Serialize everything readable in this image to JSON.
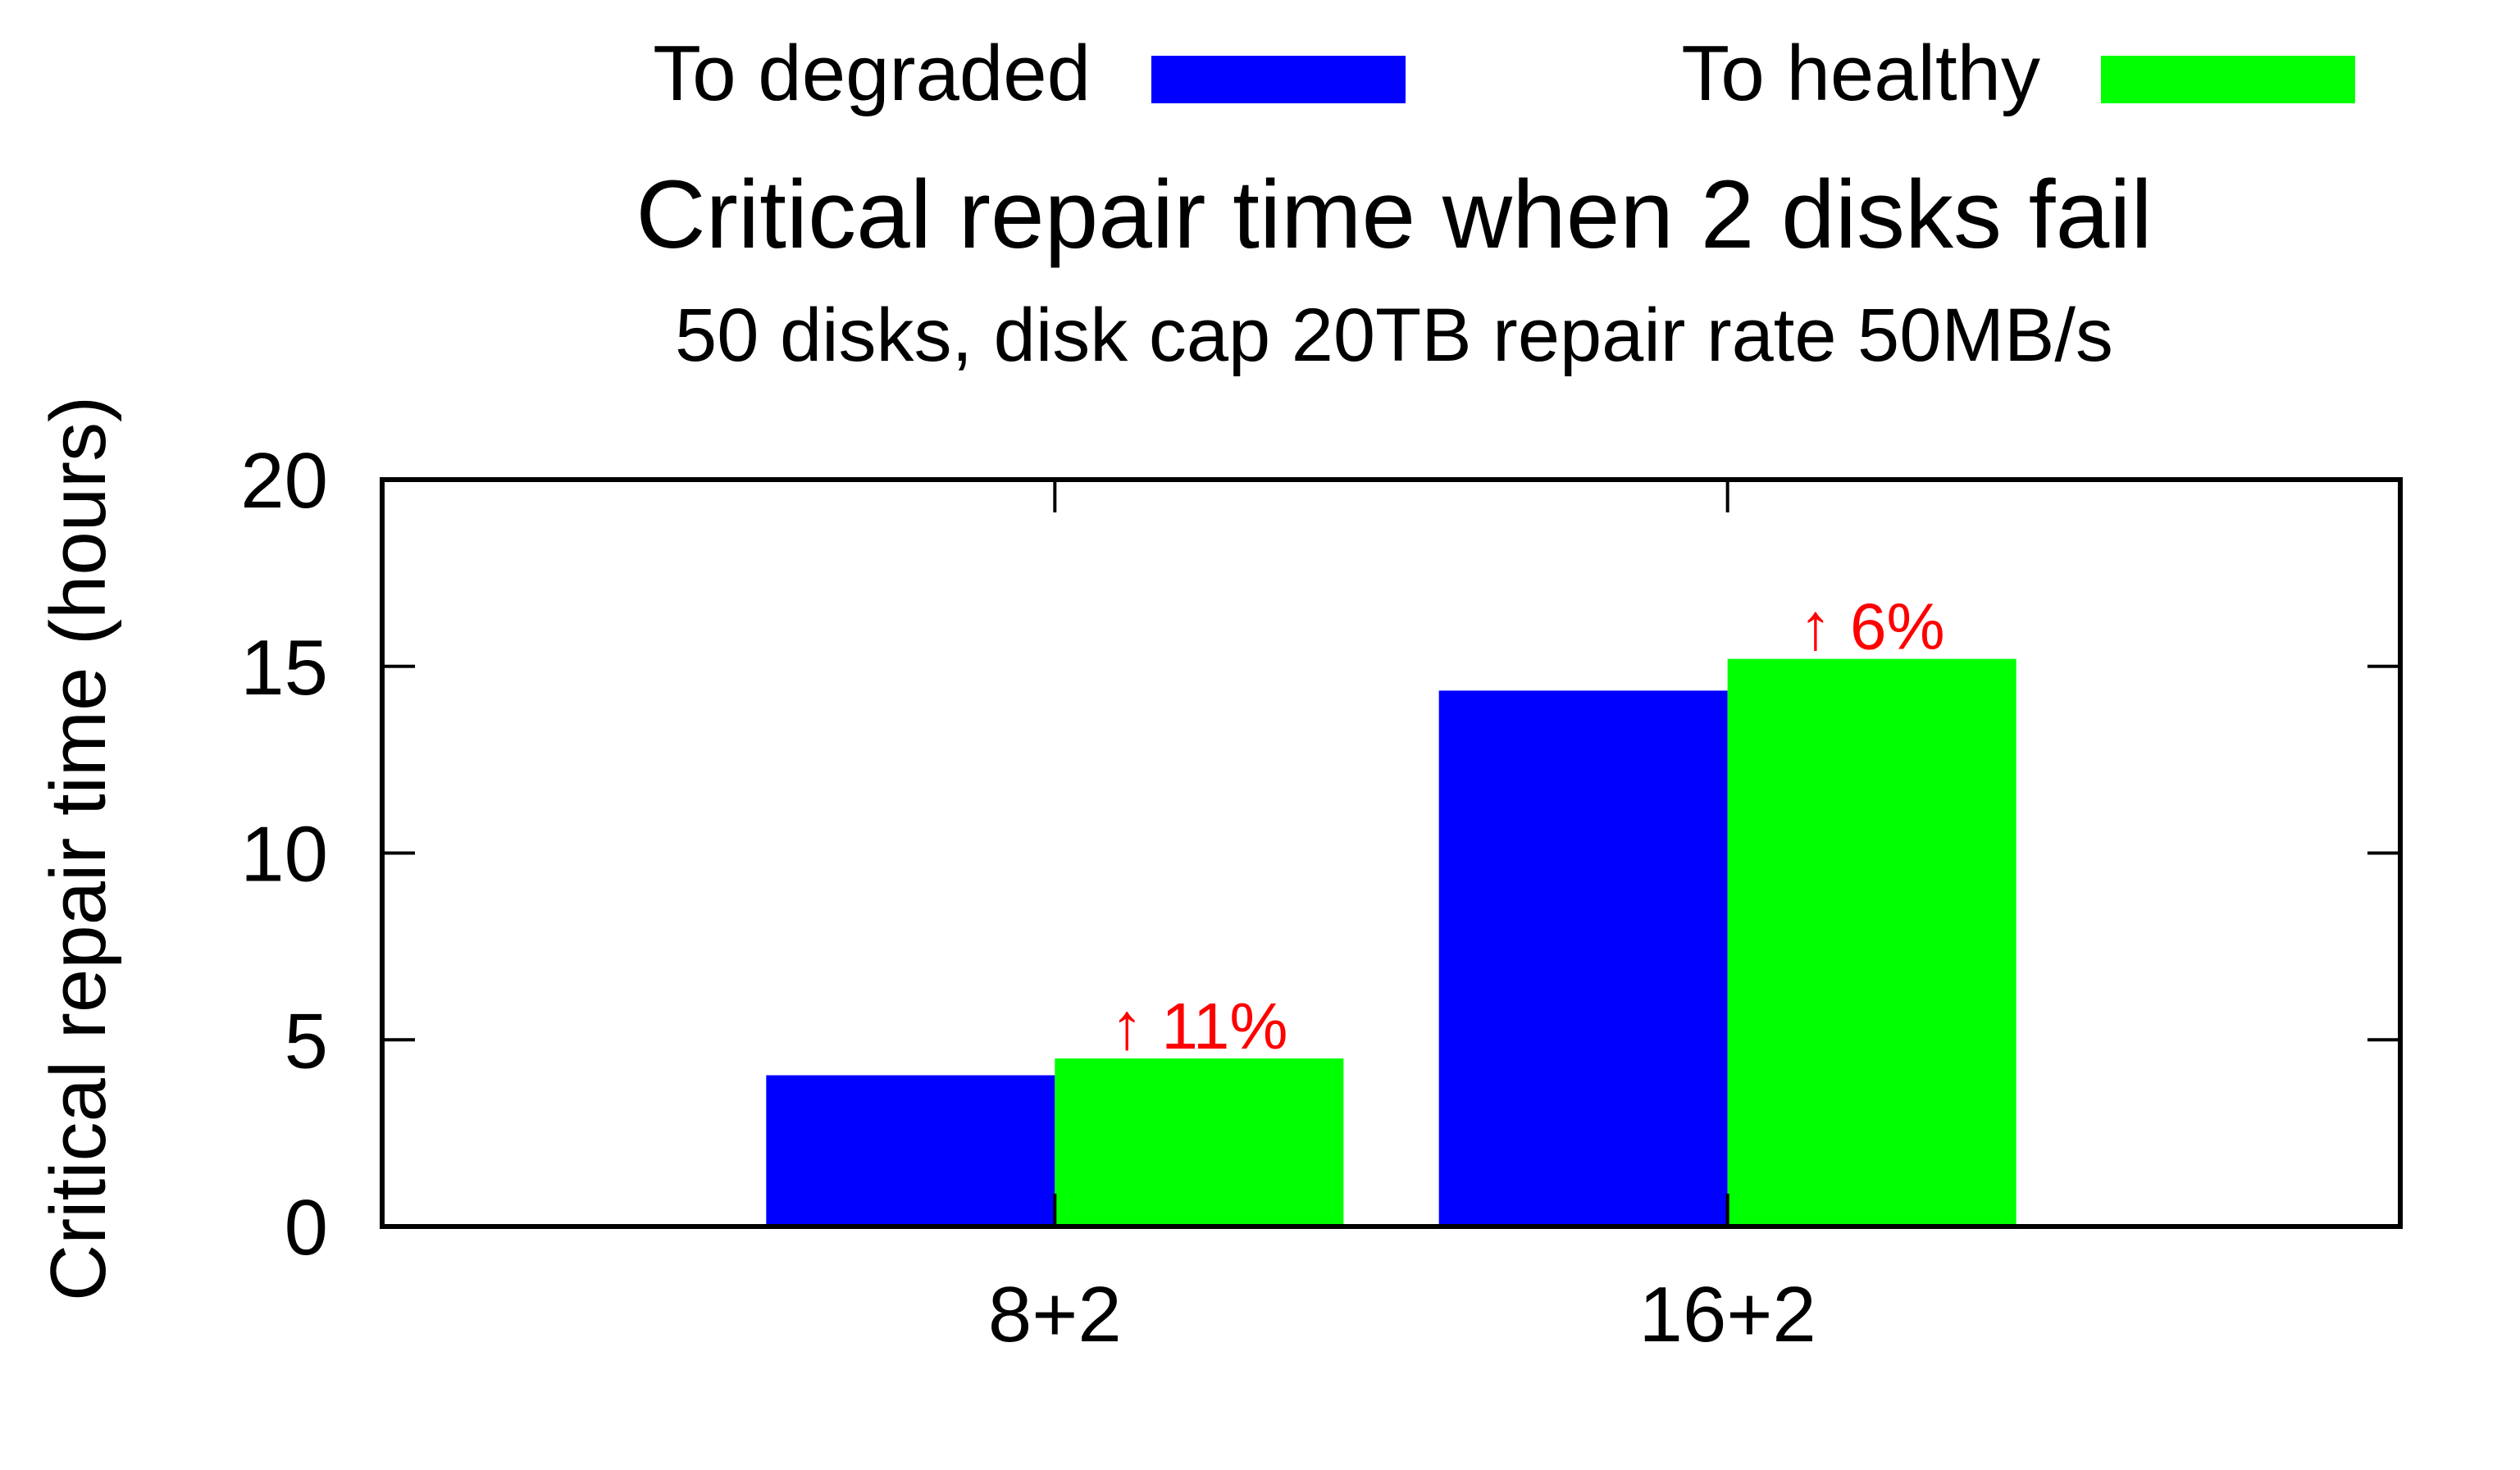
{
  "chart_data": {
    "type": "bar",
    "title": "Critical repair time when 2 disks fail",
    "subtitle": "50 disks, disk cap 20TB repair rate 50MB/s",
    "xlabel": "",
    "ylabel": "Critical repair time (hours)",
    "ylim": [
      0,
      20
    ],
    "yticks": [
      "0",
      "5",
      "10",
      "15",
      "20"
    ],
    "categories": [
      "8+2",
      "16+2"
    ],
    "series": [
      {
        "name": "To degraded",
        "color": "#0000ff",
        "values": [
          4.05,
          14.35
        ]
      },
      {
        "name": "To healthy",
        "color": "#00ff00",
        "values": [
          4.5,
          15.2
        ]
      }
    ],
    "annotations": [
      {
        "category": "8+2",
        "text": "↑ 11%",
        "color": "#ff0000"
      },
      {
        "category": "16+2",
        "text": "↑ 6%",
        "color": "#ff0000"
      }
    ],
    "legend_position": "top",
    "grid": false
  }
}
